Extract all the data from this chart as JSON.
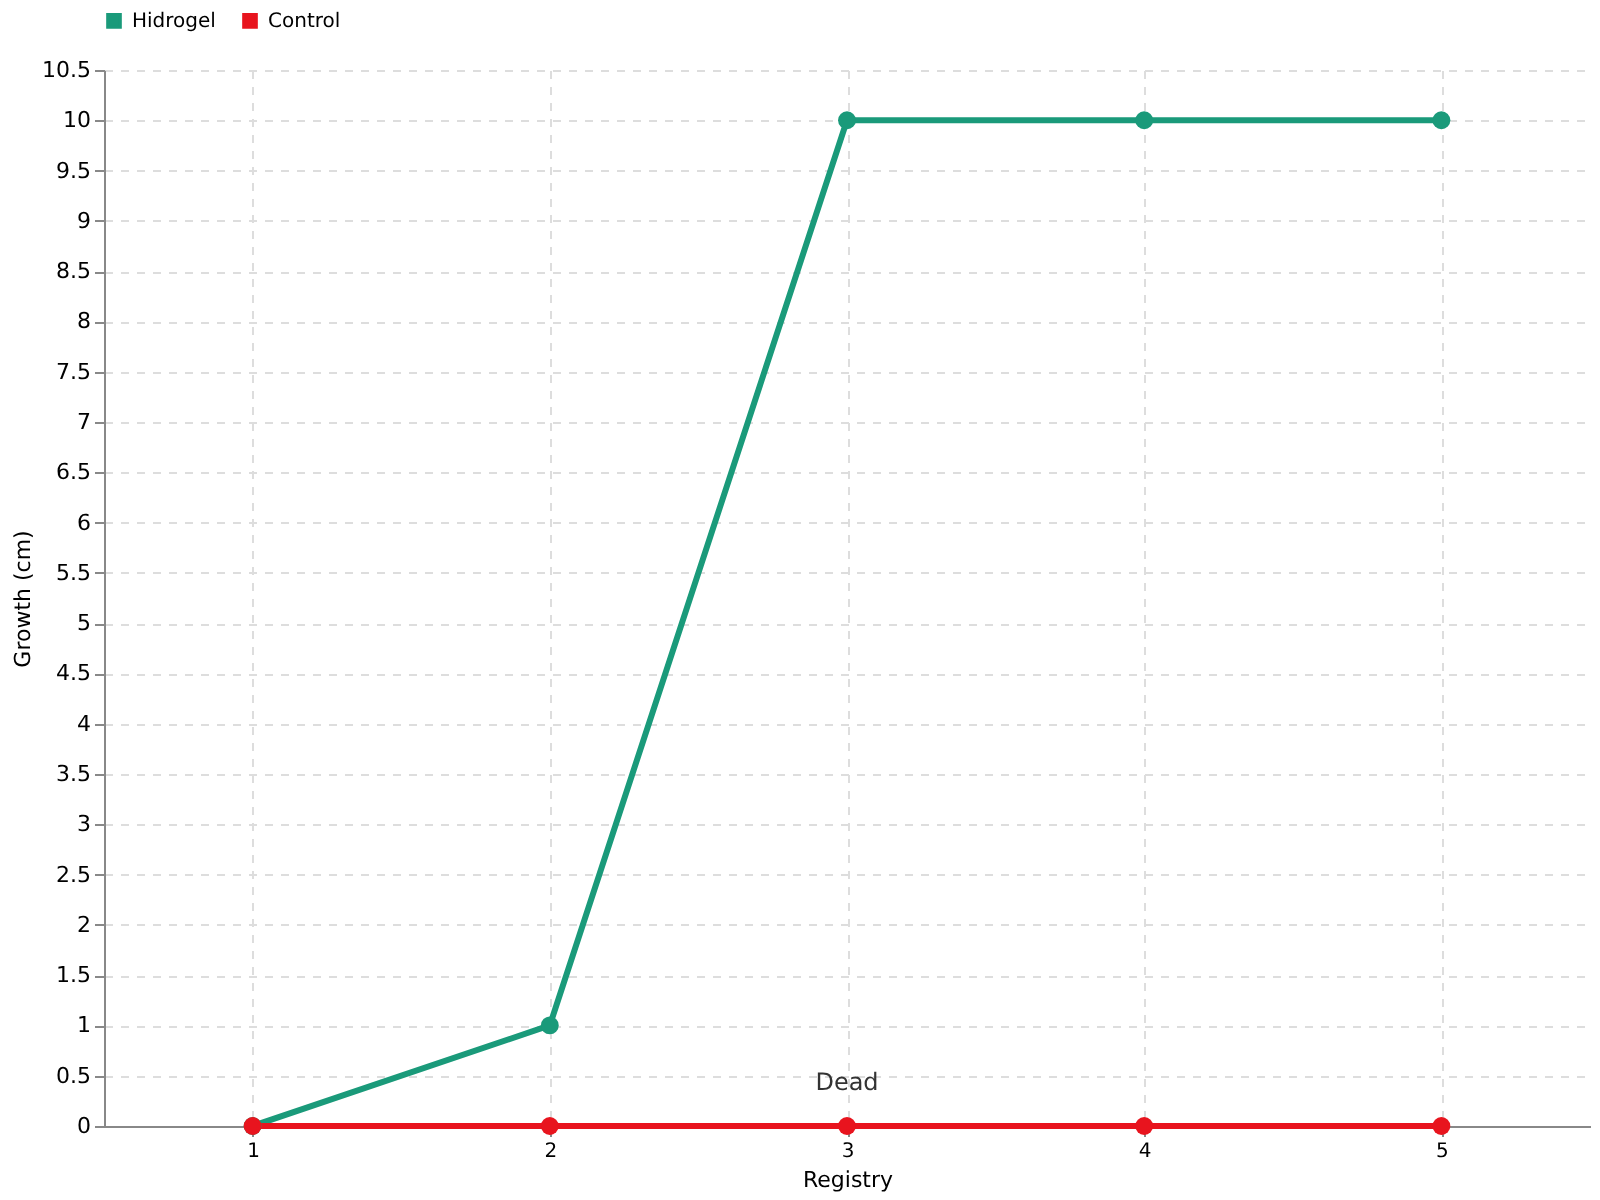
{
  "chart_data": {
    "type": "line",
    "xlabel": "Registry",
    "ylabel": "Growth (cm)",
    "categories": [
      "1",
      "2",
      "3",
      "4",
      "5"
    ],
    "series": [
      {
        "name": "Hidrogel",
        "color": "#1a9a7a",
        "values": [
          0,
          1,
          10,
          10,
          10
        ]
      },
      {
        "name": "Control",
        "color": "#e8141e",
        "values": [
          0,
          0,
          0,
          0,
          0
        ]
      }
    ],
    "ylim": [
      0,
      10.5
    ],
    "yticks": [
      0,
      0.5,
      1,
      1.5,
      2,
      2.5,
      3,
      3.5,
      4,
      4.5,
      5,
      5.5,
      6,
      6.5,
      7,
      7.5,
      8,
      8.5,
      9,
      9.5,
      10,
      10.5
    ],
    "annotations": [
      {
        "text": "Dead",
        "x": "3",
        "y": 0
      }
    ],
    "grid": true,
    "legend": "top left",
    "marker": "circle",
    "line_style": "solid"
  }
}
